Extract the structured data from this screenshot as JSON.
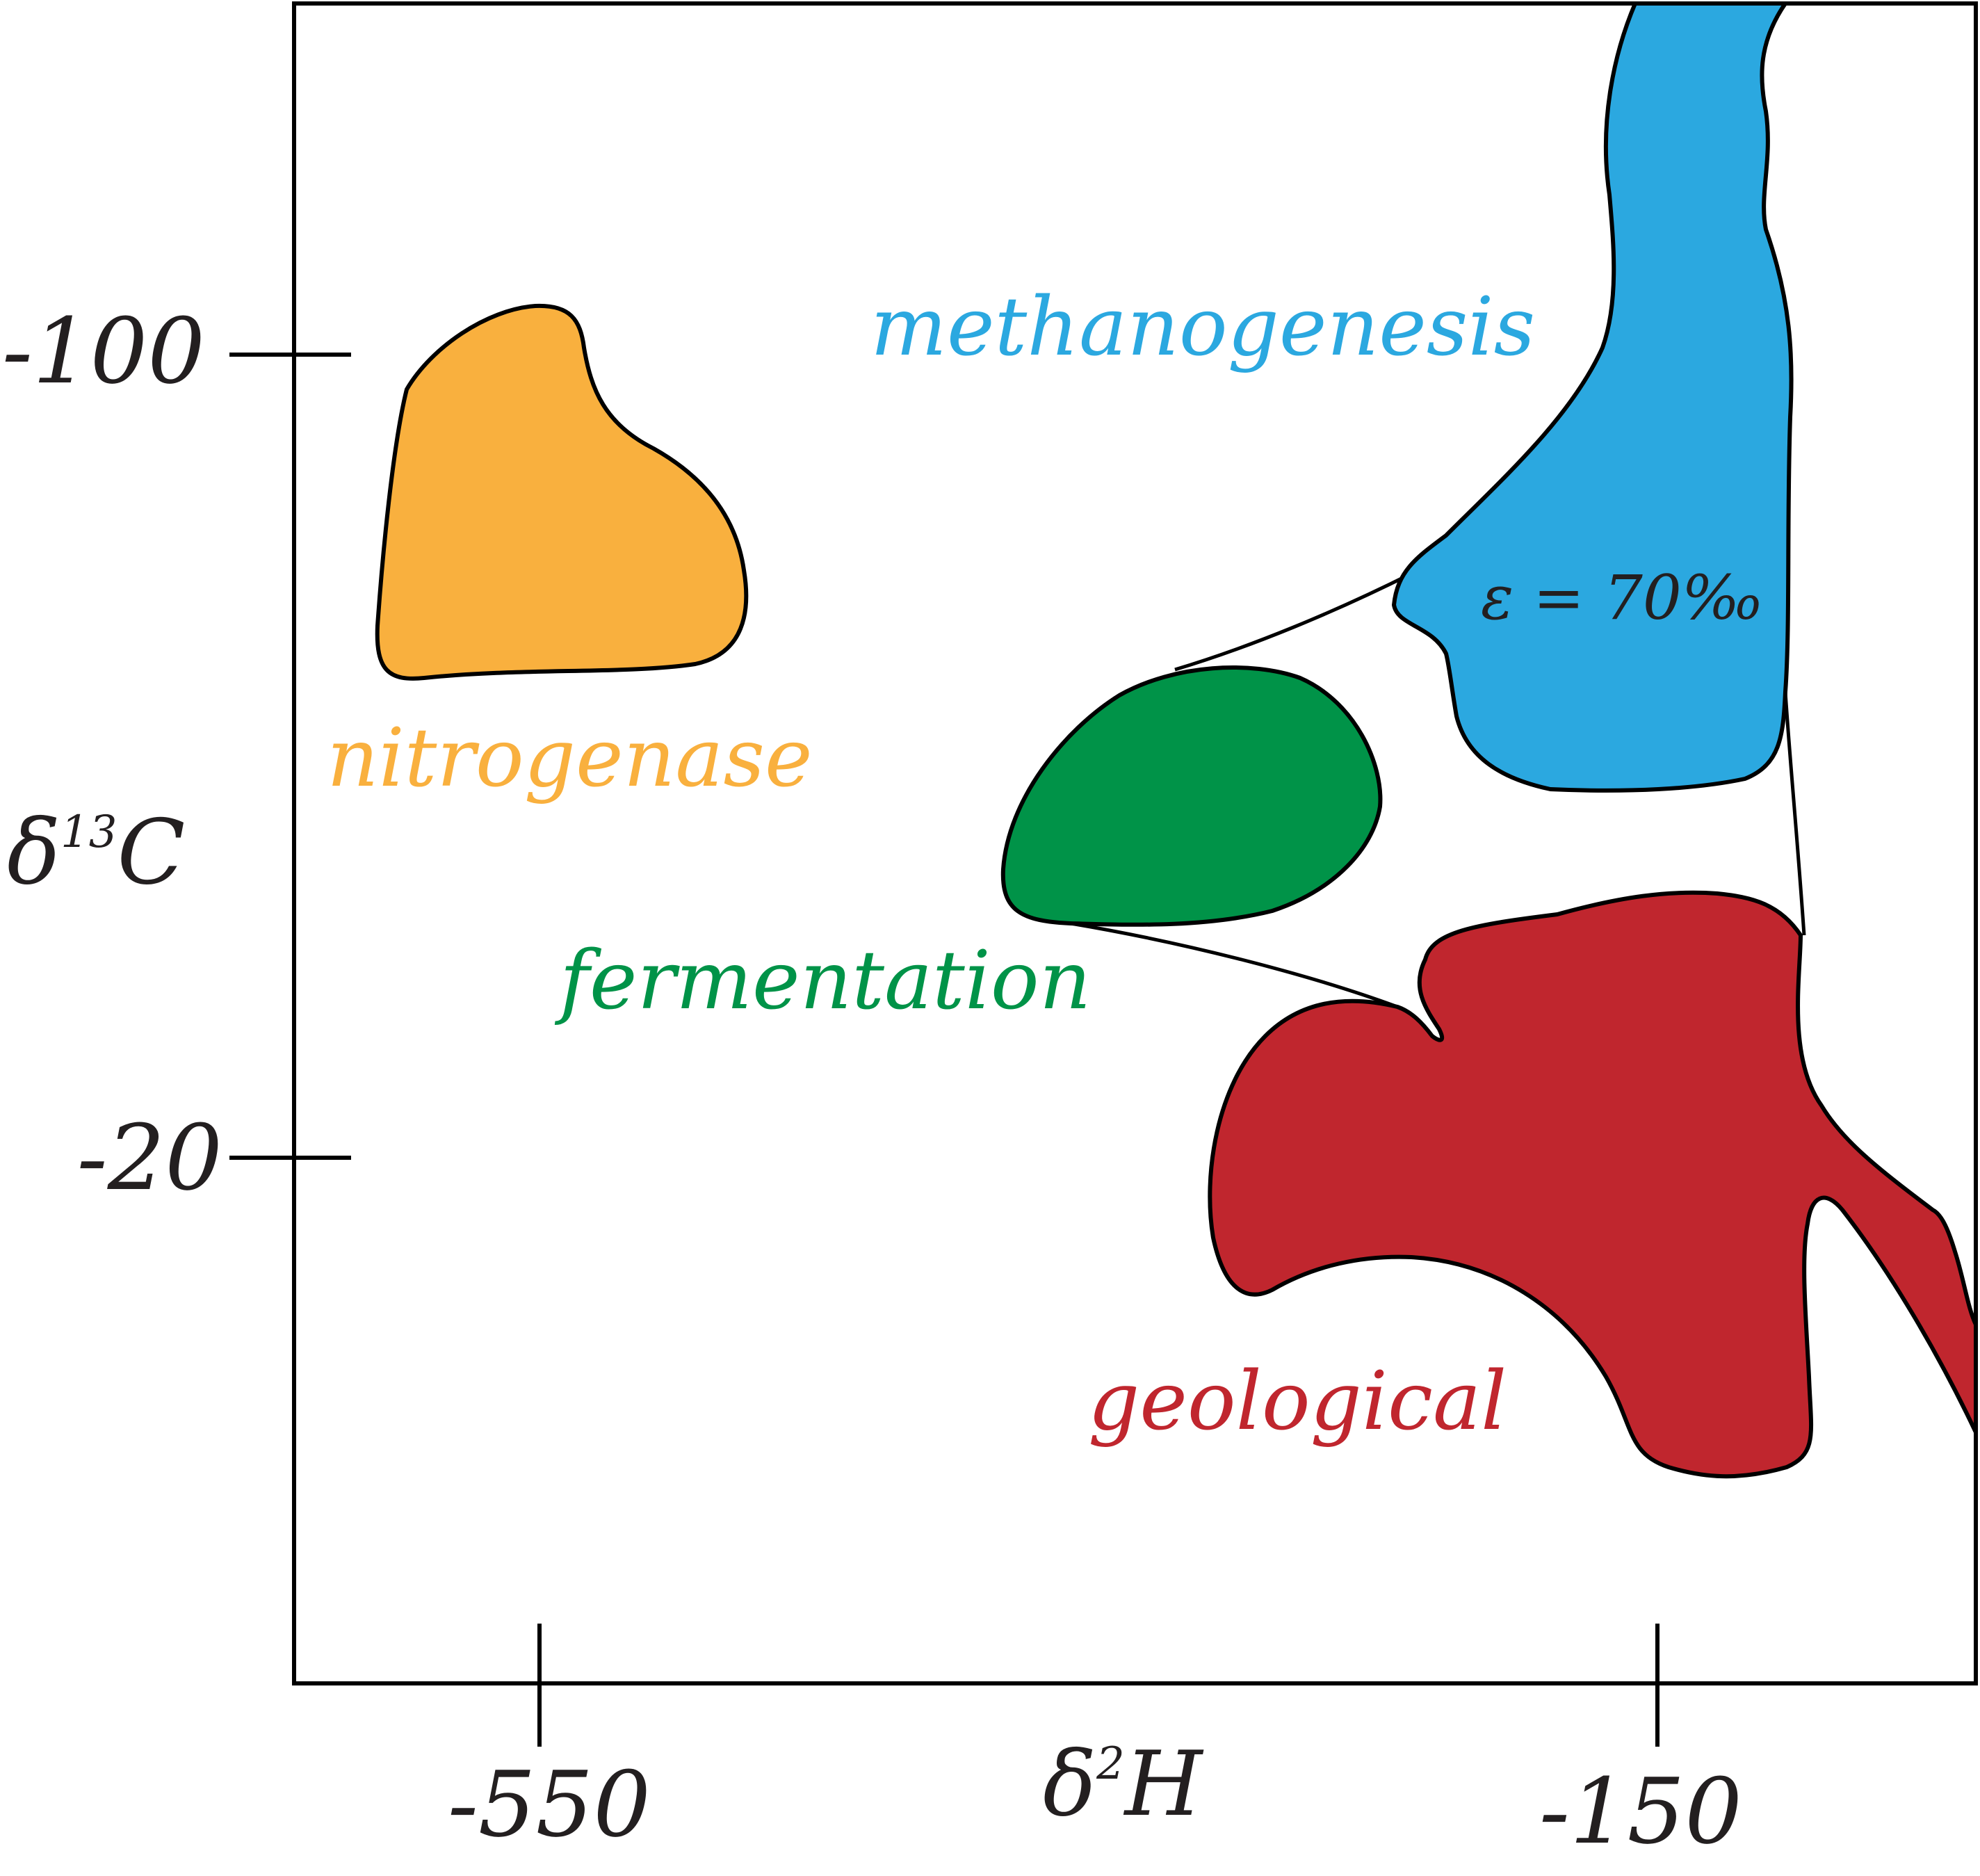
{
  "chart_data": {
    "type": "scatter",
    "title": "",
    "xlabel": "δ²H",
    "ylabel": "δ¹³C",
    "x_ticks": [
      -550,
      -150
    ],
    "y_ticks": [
      -100,
      -20
    ],
    "x_tick_labels": [
      "-550",
      "-150"
    ],
    "y_tick_labels": [
      "-100",
      "-20"
    ],
    "xlabel_parts": {
      "base": "δ",
      "sup": "2",
      "var": "H"
    },
    "ylabel_parts": {
      "base": "δ",
      "sup": "13",
      "var": "C"
    },
    "grid": false,
    "legend": "none",
    "regions": [
      {
        "id": "nitrogenase",
        "name": "nitrogenase",
        "color": "#f9b03e"
      },
      {
        "id": "methanogenesis",
        "name": "methanogenesis",
        "color": "#2ba8e0"
      },
      {
        "id": "fermentation",
        "name": "fermentation",
        "color": "#009348"
      },
      {
        "id": "geological",
        "name": "geological",
        "color": "#c0262e"
      }
    ],
    "annotations": [
      {
        "text": "ε = 70‰",
        "region": "methanogenesis"
      }
    ]
  }
}
